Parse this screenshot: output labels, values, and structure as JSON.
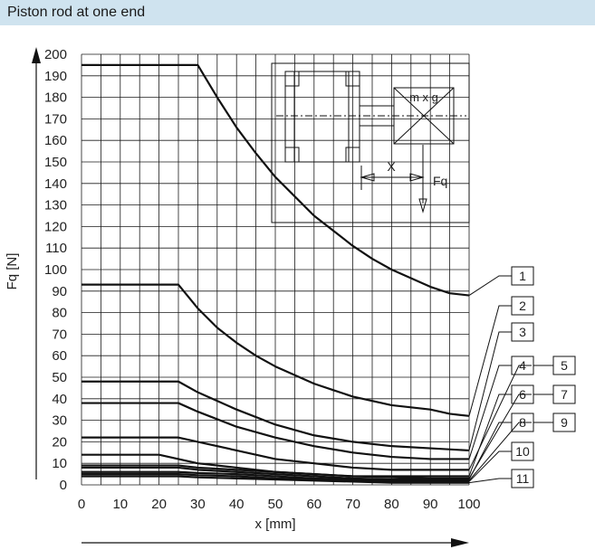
{
  "header": {
    "title": "Piston rod at one end"
  },
  "chart_data": {
    "type": "line",
    "title": "Piston rod at one end",
    "xlabel": "x [mm]",
    "ylabel": "Fq [N]",
    "xlim": [
      0,
      100
    ],
    "ylim": [
      0,
      200
    ],
    "x_ticks": [
      0,
      10,
      20,
      30,
      40,
      50,
      60,
      70,
      80,
      90,
      100
    ],
    "y_ticks": [
      0,
      10,
      20,
      30,
      40,
      50,
      60,
      70,
      80,
      90,
      100,
      110,
      120,
      130,
      140,
      150,
      160,
      170,
      180,
      190,
      200
    ],
    "grid": true,
    "series": [
      {
        "name": "1",
        "x": [
          0,
          30,
          35,
          40,
          45,
          50,
          55,
          60,
          65,
          70,
          75,
          80,
          85,
          90,
          95,
          100
        ],
        "values": [
          195,
          195,
          180,
          166,
          154,
          143,
          134,
          125,
          118,
          111,
          105,
          100,
          96,
          92,
          89,
          88
        ]
      },
      {
        "name": "2",
        "x": [
          0,
          25,
          30,
          35,
          40,
          45,
          50,
          55,
          60,
          65,
          70,
          75,
          80,
          85,
          90,
          95,
          100
        ],
        "values": [
          93,
          93,
          82,
          73,
          66,
          60,
          55,
          51,
          47,
          44,
          41,
          39,
          37,
          36,
          35,
          33,
          32
        ]
      },
      {
        "name": "3",
        "x": [
          0,
          25,
          30,
          40,
          50,
          60,
          70,
          80,
          90,
          100
        ],
        "values": [
          48,
          48,
          43,
          35,
          28,
          23,
          20,
          18,
          17,
          16
        ]
      },
      {
        "name": "4",
        "x": [
          0,
          25,
          30,
          40,
          50,
          60,
          70,
          80,
          90,
          100
        ],
        "values": [
          38,
          38,
          34,
          27,
          22,
          18,
          15,
          13,
          12,
          12
        ]
      },
      {
        "name": "5",
        "x": [
          0,
          25,
          30,
          40,
          50,
          60,
          70,
          80,
          90,
          100
        ],
        "values": [
          22,
          22,
          20,
          16,
          12,
          10,
          8,
          7,
          7,
          7
        ]
      },
      {
        "name": "6",
        "x": [
          0,
          20,
          25,
          30,
          40,
          50,
          60,
          70,
          80,
          90,
          100
        ],
        "values": [
          14,
          14,
          12,
          10,
          8,
          6,
          5,
          4,
          4,
          4,
          4
        ]
      },
      {
        "name": "7",
        "x": [
          0,
          25,
          30,
          40,
          50,
          60,
          70,
          80,
          90,
          100
        ],
        "values": [
          9,
          9,
          8,
          7,
          6,
          5,
          4,
          3.5,
          3,
          3
        ]
      },
      {
        "name": "8",
        "x": [
          0,
          25,
          30,
          40,
          50,
          60,
          70,
          80,
          90,
          100
        ],
        "values": [
          8,
          8,
          7,
          6,
          5,
          4,
          3,
          2.5,
          2.5,
          2.5
        ]
      },
      {
        "name": "9",
        "x": [
          0,
          25,
          30,
          40,
          50,
          60,
          70,
          80,
          90,
          100
        ],
        "values": [
          6,
          6,
          5.5,
          5,
          4,
          3,
          2.5,
          2,
          2,
          2
        ]
      },
      {
        "name": "10",
        "x": [
          0,
          25,
          30,
          40,
          50,
          60,
          70,
          80,
          90,
          100
        ],
        "values": [
          5,
          5,
          4.5,
          4,
          3,
          2.5,
          2,
          1.5,
          1.5,
          1.5
        ]
      },
      {
        "name": "11",
        "x": [
          0,
          25,
          30,
          40,
          50,
          60,
          70,
          80,
          90,
          100
        ],
        "values": [
          4,
          4,
          3.5,
          3,
          2.5,
          2,
          1.5,
          1,
          1,
          1
        ]
      }
    ],
    "inset": {
      "mass_label": "m x g",
      "x_label": "X",
      "force_label": "Fq"
    },
    "legend": [
      "1",
      "2",
      "3",
      "4",
      "5",
      "6",
      "7",
      "8",
      "9",
      "10",
      "11"
    ]
  }
}
